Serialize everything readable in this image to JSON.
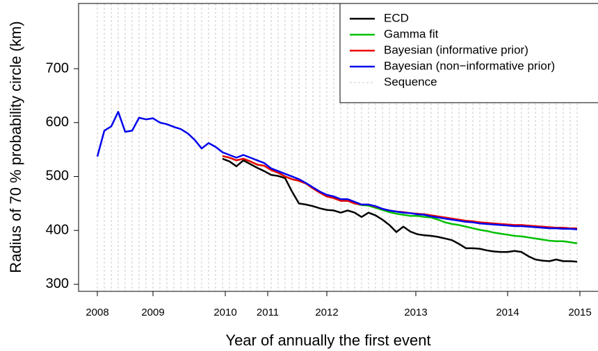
{
  "chart_data": {
    "type": "line",
    "xlabel": "Year of annually the first event",
    "ylabel": "Radius of 70 % probability circle (km)",
    "x": [
      0,
      1,
      2,
      3,
      4,
      5,
      6,
      7,
      8,
      9,
      10,
      11,
      12,
      13,
      14,
      15,
      16,
      17,
      18,
      19,
      20,
      21,
      22,
      23,
      24,
      25,
      26,
      27,
      28,
      29,
      30,
      31,
      32,
      33,
      34,
      35,
      36,
      37,
      38,
      39,
      40,
      41,
      42,
      43,
      44,
      45,
      46,
      47,
      48,
      49,
      50,
      51,
      52,
      53,
      54,
      55,
      56,
      57,
      58,
      59,
      60,
      61,
      62,
      63,
      64,
      65,
      66,
      67,
      68,
      69
    ],
    "xlim": [
      -2.7,
      72
    ],
    "xticks": [
      {
        "value": 0,
        "label": "2008"
      },
      {
        "value": 8,
        "label": "2009"
      },
      {
        "value": 18.4,
        "label": "2010"
      },
      {
        "value": 24.5,
        "label": "2011"
      },
      {
        "value": 33,
        "label": "2012"
      },
      {
        "value": 45.8,
        "label": "2013"
      },
      {
        "value": 59,
        "label": "2014"
      },
      {
        "value": 69.4,
        "label": "2015"
      }
    ],
    "ylim": [
      287,
      821
    ],
    "yticks": [
      300,
      400,
      500,
      600,
      700
    ],
    "legend": "top-right",
    "vlines": {
      "name": "Sequence",
      "color": "#c8c8c8"
    },
    "series": [
      {
        "name": "ECD",
        "color": "#000000",
        "values": [
          null,
          null,
          null,
          null,
          null,
          null,
          null,
          null,
          null,
          null,
          null,
          null,
          null,
          null,
          null,
          null,
          null,
          null,
          533,
          528,
          519,
          530,
          523,
          516,
          510,
          503,
          501,
          497,
          472,
          450,
          448,
          445,
          441,
          438,
          437,
          433,
          437,
          433,
          425,
          433,
          428,
          420,
          410,
          397,
          407,
          398,
          393,
          391,
          390,
          388,
          385,
          382,
          375,
          367,
          367,
          366,
          363,
          361,
          360,
          360,
          362,
          360,
          352,
          346,
          344,
          343,
          346,
          343,
          343,
          342
        ]
      },
      {
        "name": "Gamma fit",
        "color": "#00c000",
        "values": [
          null,
          null,
          null,
          null,
          null,
          null,
          null,
          null,
          null,
          null,
          null,
          null,
          null,
          null,
          null,
          null,
          null,
          null,
          538,
          535,
          530,
          533,
          528,
          522,
          520,
          512,
          507,
          500,
          495,
          492,
          487,
          478,
          470,
          463,
          460,
          455,
          455,
          450,
          447,
          446,
          442,
          438,
          434,
          431,
          429,
          427,
          427,
          425,
          424,
          420,
          415,
          412,
          410,
          407,
          404,
          401,
          399,
          396,
          394,
          392,
          390,
          389,
          387,
          385,
          383,
          381,
          380,
          380,
          378,
          376
        ]
      },
      {
        "name": "Bayesian (informative prior)",
        "color": "#ee0000",
        "values": [
          null,
          null,
          null,
          null,
          null,
          null,
          null,
          null,
          null,
          null,
          null,
          null,
          null,
          null,
          null,
          null,
          null,
          null,
          538,
          535,
          530,
          533,
          528,
          522,
          520,
          512,
          507,
          500,
          495,
          492,
          487,
          478,
          470,
          463,
          460,
          455,
          455,
          450,
          448,
          448,
          444,
          440,
          437,
          435,
          434,
          432,
          431,
          430,
          428,
          426,
          424,
          422,
          420,
          418,
          417,
          415,
          414,
          413,
          412,
          411,
          410,
          410,
          409,
          408,
          407,
          406,
          405,
          405,
          404,
          404
        ]
      },
      {
        "name": "Bayesian (non−informative prior)",
        "color": "#0000ee",
        "values": [
          537,
          585,
          593,
          620,
          583,
          585,
          609,
          606,
          608,
          600,
          597,
          592,
          588,
          580,
          568,
          552,
          562,
          555,
          545,
          540,
          535,
          540,
          535,
          530,
          525,
          515,
          510,
          505,
          500,
          495,
          488,
          480,
          472,
          466,
          463,
          458,
          458,
          453,
          448,
          448,
          445,
          440,
          437,
          435,
          433,
          432,
          430,
          429,
          426,
          424,
          422,
          420,
          418,
          416,
          415,
          413,
          412,
          411,
          410,
          409,
          408,
          408,
          407,
          406,
          405,
          404,
          404,
          403,
          403,
          402
        ]
      }
    ]
  }
}
